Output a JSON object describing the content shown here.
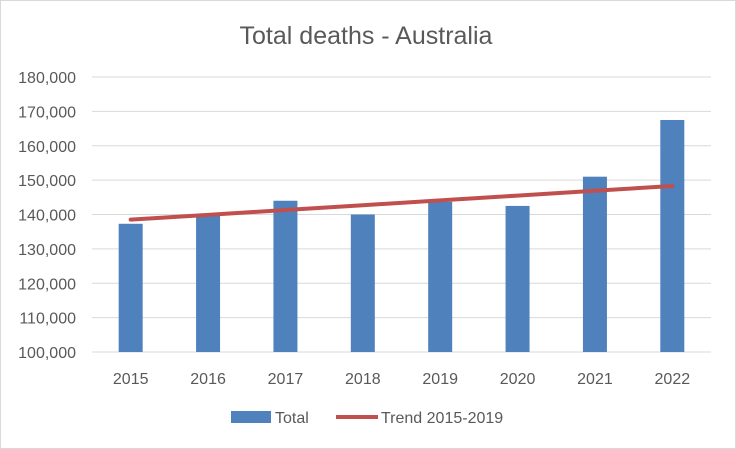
{
  "chart_data": {
    "type": "bar",
    "title": "Total deaths - Australia",
    "xlabel": "",
    "ylabel": "",
    "categories": [
      "2015",
      "2016",
      "2017",
      "2018",
      "2019",
      "2020",
      "2021",
      "2022"
    ],
    "series": [
      {
        "name": "Total",
        "type": "bar",
        "values": [
          137300,
          139900,
          144000,
          140000,
          143700,
          142500,
          151000,
          167500
        ]
      },
      {
        "name": "Trend 2015-2019",
        "type": "line",
        "values": [
          138500,
          139900,
          141300,
          142700,
          144100,
          145500,
          146900,
          148300
        ]
      }
    ],
    "ylim": [
      100000,
      180000
    ],
    "yticks": [
      100000,
      110000,
      120000,
      130000,
      140000,
      150000,
      160000,
      170000,
      180000
    ],
    "ytick_labels": [
      "100,000",
      "110,000",
      "120,000",
      "130,000",
      "140,000",
      "150,000",
      "160,000",
      "170,000",
      "180,000"
    ],
    "grid": true,
    "legend": "bottom",
    "colors": {
      "Total": "#4f81bd",
      "Trend 2015-2019": "#c0504d",
      "grid": "#d9d9d9",
      "text": "#595959"
    }
  }
}
